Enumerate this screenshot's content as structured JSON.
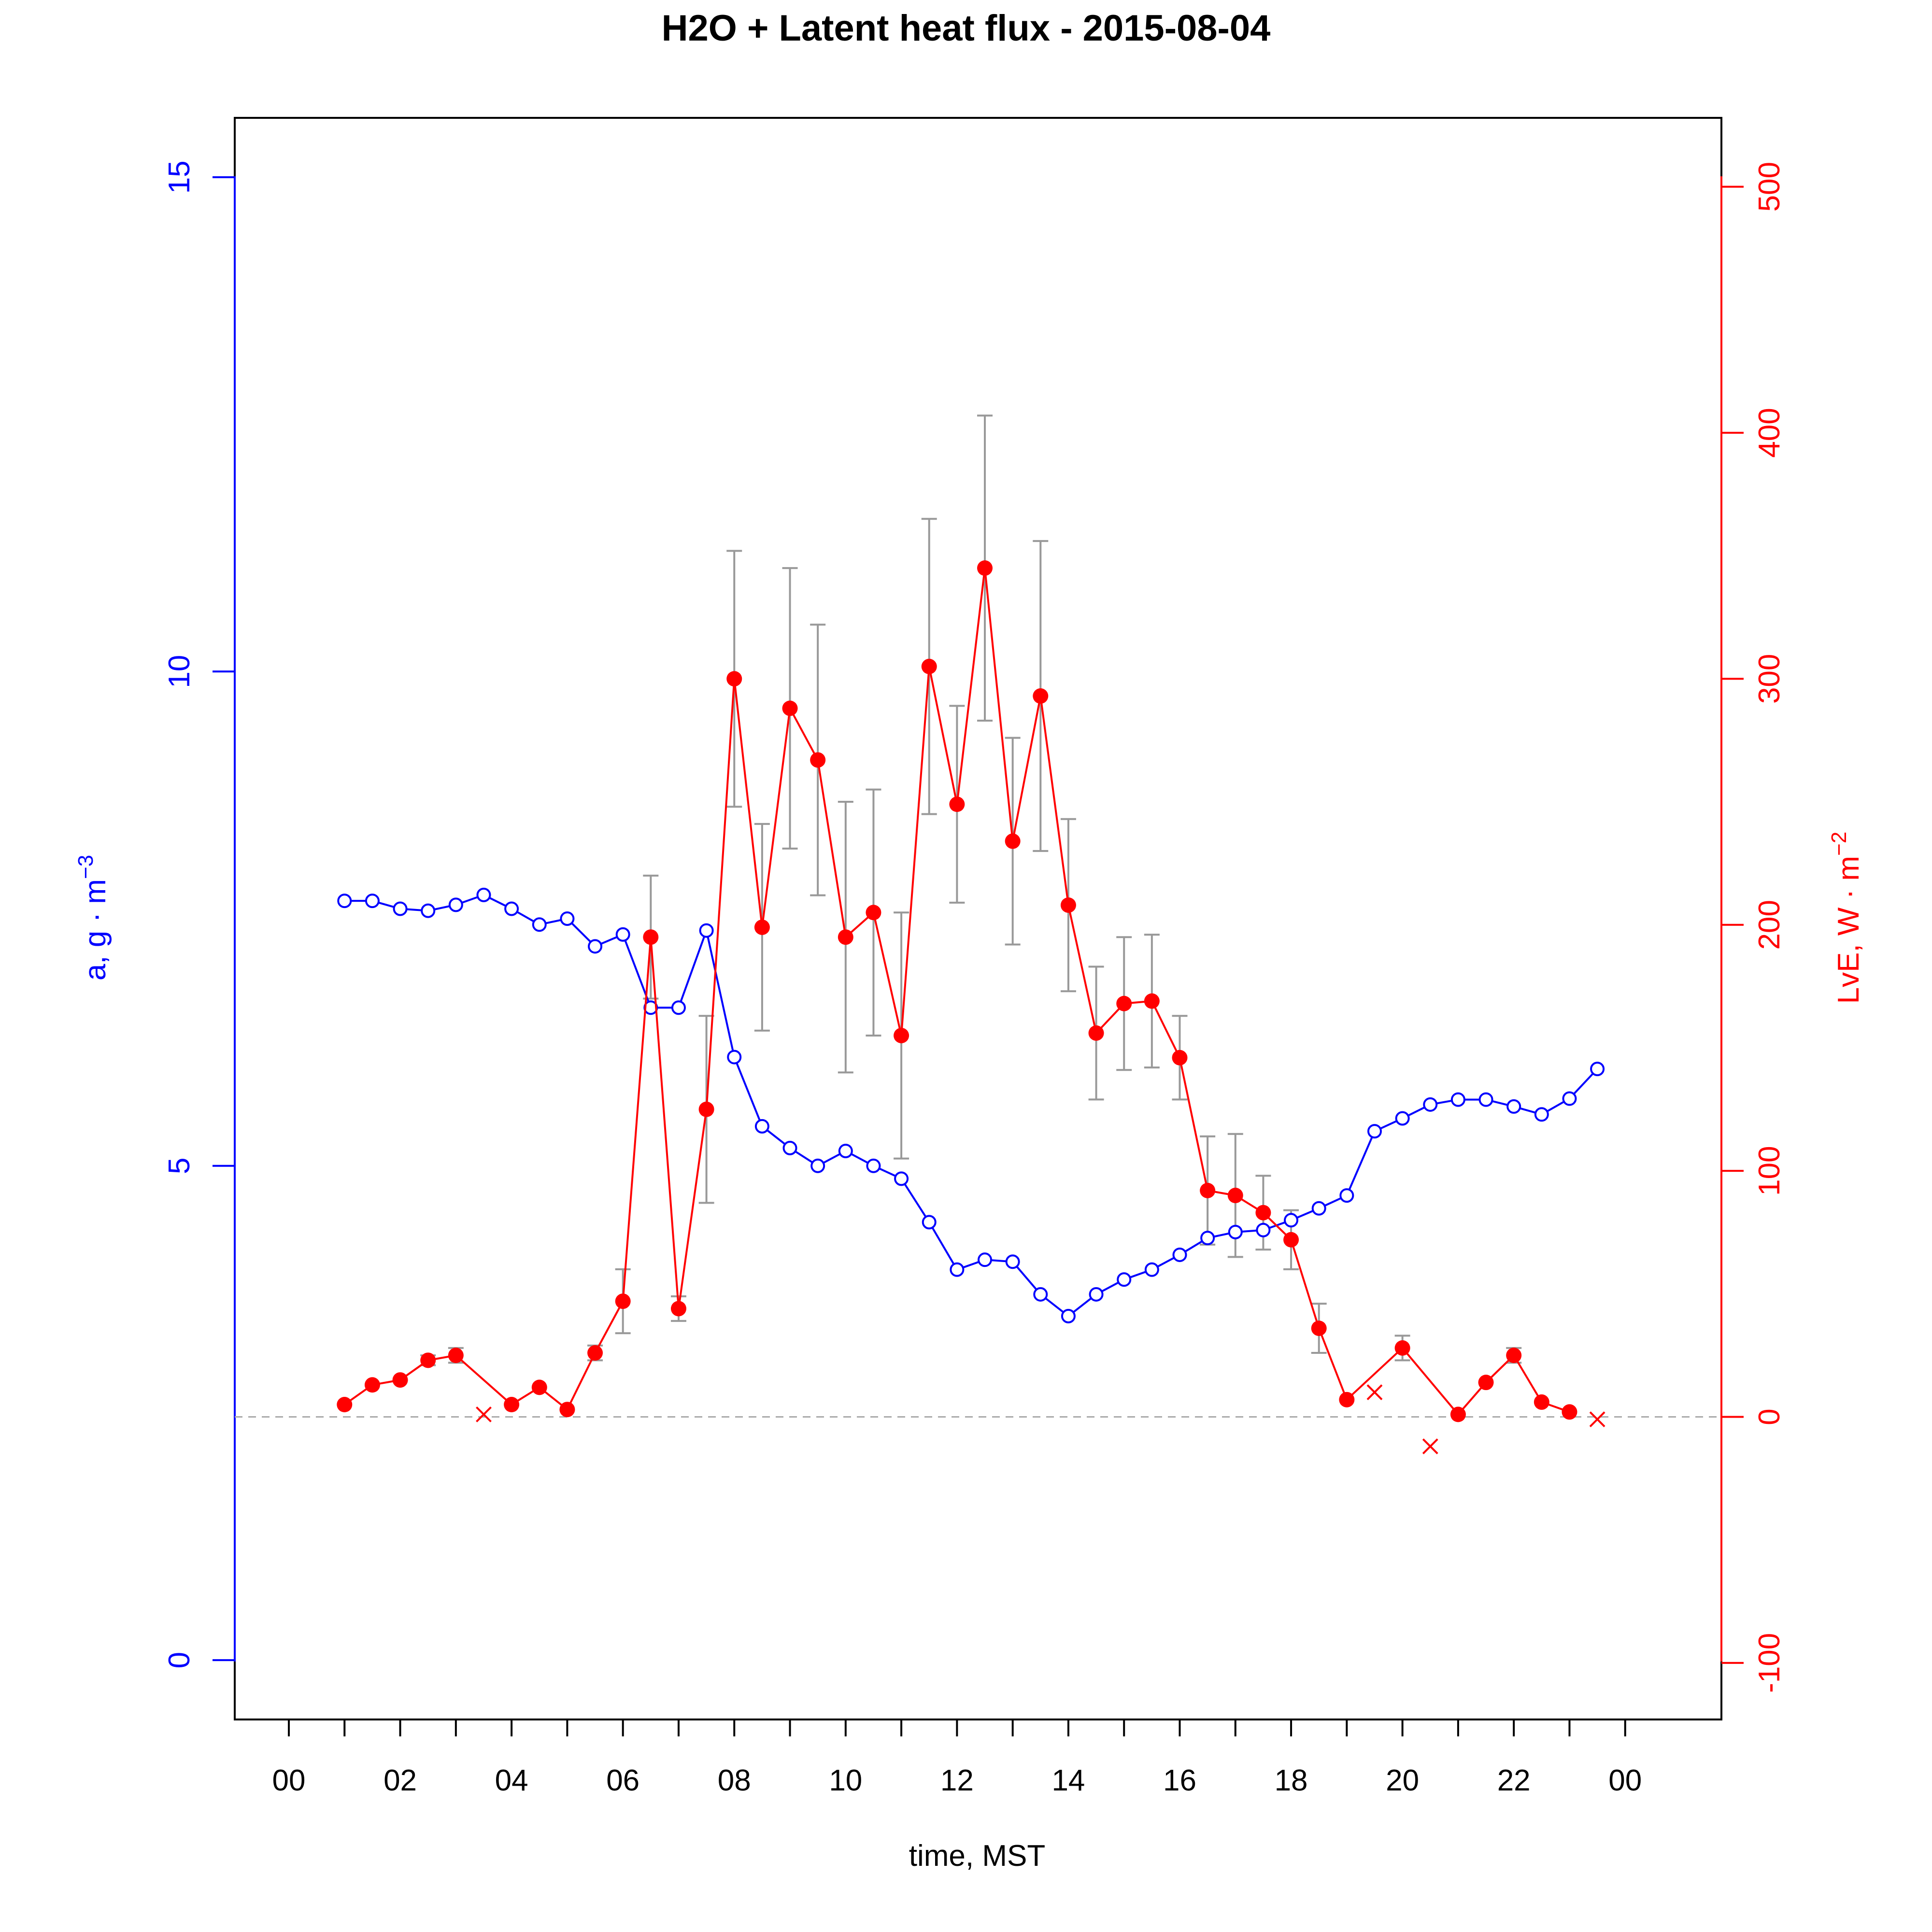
{
  "chart_data": {
    "type": "line",
    "title": "H2O + Latent heat flux -  2015-08-04",
    "xlabel": "time, MST",
    "ylabel_left": "a, g · m",
    "ylabel_left_sup": "−3",
    "ylabel_right": "LvE, W · m",
    "ylabel_right_sup": "−2",
    "x_ticks": [
      "00",
      "02",
      "04",
      "06",
      "08",
      "10",
      "12",
      "14",
      "16",
      "18",
      "20",
      "22",
      "00"
    ],
    "y_left_ticks": [
      "0",
      "5",
      "10",
      "15"
    ],
    "y_right_ticks": [
      "-100",
      "0",
      "100",
      "200",
      "300",
      "400",
      "500"
    ],
    "xlim": [
      0,
      24
    ],
    "ylim_left": [
      -0.6,
      15.6
    ],
    "ylim_right": [
      -123,
      528
    ],
    "colors": {
      "h2o": "#0000ff",
      "lve": "#ff0000",
      "error": "#999999",
      "zero_line": "#aaaaaa"
    },
    "series": [
      {
        "name": "a",
        "axis": "left",
        "marker": "open-circle",
        "x": [
          1.0,
          1.5,
          2.0,
          2.5,
          3.0,
          3.5,
          4.0,
          4.5,
          5.0,
          5.5,
          6.0,
          6.5,
          7.0,
          7.5,
          8.0,
          8.5,
          9.0,
          9.5,
          10.0,
          10.5,
          11.0,
          11.5,
          12.0,
          12.5,
          13.0,
          13.5,
          14.0,
          14.5,
          15.0,
          15.5,
          16.0,
          16.5,
          17.0,
          17.5,
          18.0,
          18.5,
          19.0,
          19.5,
          20.0,
          20.5,
          21.0,
          21.5,
          22.0,
          22.5,
          23.0,
          23.5
        ],
        "y": [
          7.68,
          7.68,
          7.6,
          7.58,
          7.64,
          7.74,
          7.6,
          7.44,
          7.5,
          7.22,
          7.34,
          6.6,
          6.6,
          7.38,
          6.1,
          5.4,
          5.18,
          5.0,
          5.15,
          5.0,
          4.87,
          4.43,
          3.95,
          4.05,
          4.03,
          3.7,
          3.48,
          3.7,
          3.85,
          3.95,
          4.1,
          4.27,
          4.33,
          4.35,
          4.45,
          4.57,
          4.7,
          5.35,
          5.48,
          5.62,
          5.67,
          5.67,
          5.6,
          5.52,
          5.68,
          5.98
        ]
      },
      {
        "name": "LvE",
        "axis": "right",
        "marker": "filled-circle",
        "x": [
          1.0,
          1.5,
          2.0,
          2.5,
          3.0,
          4.0,
          4.5,
          5.0,
          5.5,
          6.0,
          6.5,
          7.0,
          7.5,
          8.0,
          8.5,
          9.0,
          9.5,
          10.0,
          10.5,
          11.0,
          11.5,
          12.0,
          12.5,
          13.0,
          13.5,
          14.0,
          14.5,
          15.0,
          15.5,
          16.0,
          16.5,
          17.0,
          17.5,
          18.0,
          18.5,
          19.0,
          20.0,
          21.0,
          21.5,
          22.0,
          22.5,
          23.0
        ],
        "y": [
          5,
          13,
          15,
          23,
          25,
          5,
          12,
          3,
          26,
          47,
          195,
          44,
          125,
          300,
          199,
          288,
          267,
          195,
          205,
          155,
          305,
          249,
          345,
          234,
          293,
          208,
          156,
          168,
          169,
          146,
          92,
          90,
          83,
          72,
          36,
          7,
          28,
          1,
          14,
          25,
          6,
          2
        ],
        "err": [
          0,
          0,
          0,
          2,
          3,
          0,
          0,
          0,
          3,
          13,
          25,
          5,
          38,
          52,
          42,
          57,
          55,
          55,
          50,
          50,
          60,
          40,
          62,
          42,
          63,
          35,
          27,
          27,
          27,
          17,
          22,
          25,
          15,
          12,
          10,
          0,
          5,
          0,
          0,
          3,
          0,
          0
        ]
      },
      {
        "name": "LvE (flagged)",
        "axis": "right",
        "marker": "cross",
        "x": [
          3.5,
          19.5,
          20.5,
          23.5
        ],
        "y": [
          1,
          10,
          -12,
          -1
        ]
      }
    ],
    "zero_line": 0,
    "grid": false,
    "legend": "none"
  }
}
